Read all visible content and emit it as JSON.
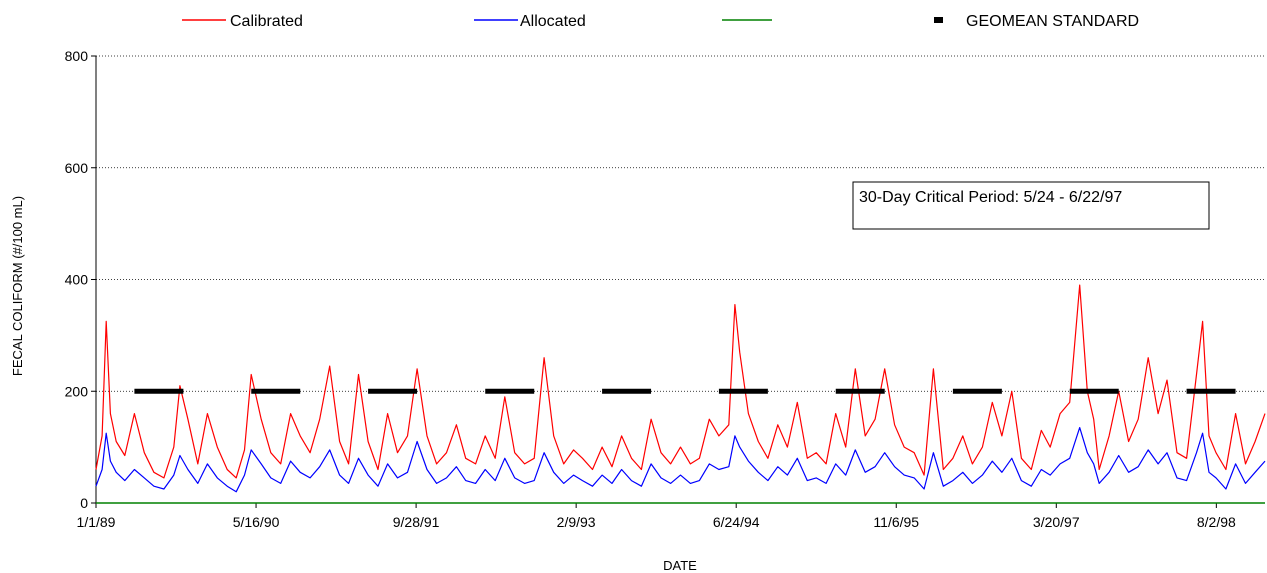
{
  "chart_data": {
    "type": "line",
    "xlabel": "DATE",
    "ylabel": "FECAL COLIFORM (#/100 mL)",
    "ylim": [
      0,
      800
    ],
    "yticks": [
      0,
      200,
      400,
      600,
      800
    ],
    "xlim": [
      "1989-01-01",
      "1999-01-01"
    ],
    "xticks": [
      {
        "date": "1989-01-01",
        "label": "1/1/89"
      },
      {
        "date": "1990-05-16",
        "label": "5/16/90"
      },
      {
        "date": "1991-09-28",
        "label": "9/28/91"
      },
      {
        "date": "1993-02-09",
        "label": "2/9/93"
      },
      {
        "date": "1994-06-24",
        "label": "6/24/94"
      },
      {
        "date": "1995-11-06",
        "label": "11/6/95"
      },
      {
        "date": "1997-03-20",
        "label": "3/20/97"
      },
      {
        "date": "1998-08-02",
        "label": "8/2/98"
      }
    ],
    "grid": "horizontal-dotted",
    "legend_position": "top",
    "annotation": "30-Day Critical Period: 5/24 - 6/22/97",
    "series": [
      {
        "name": "Calibrated",
        "color": "#ff0000",
        "points": [
          [
            "1989-01-01",
            60
          ],
          [
            "1989-01-20",
            120
          ],
          [
            "1989-02-02",
            325
          ],
          [
            "1989-02-15",
            160
          ],
          [
            "1989-03-05",
            110
          ],
          [
            "1989-04-01",
            85
          ],
          [
            "1989-05-01",
            160
          ],
          [
            "1989-06-01",
            90
          ],
          [
            "1989-07-01",
            55
          ],
          [
            "1989-08-01",
            45
          ],
          [
            "1989-09-01",
            100
          ],
          [
            "1989-09-20",
            210
          ],
          [
            "1989-10-15",
            150
          ],
          [
            "1989-11-15",
            70
          ],
          [
            "1989-12-15",
            160
          ],
          [
            "1990-01-15",
            100
          ],
          [
            "1990-02-15",
            60
          ],
          [
            "1990-03-15",
            45
          ],
          [
            "1990-04-10",
            95
          ],
          [
            "1990-05-01",
            230
          ],
          [
            "1990-06-01",
            150
          ],
          [
            "1990-07-01",
            90
          ],
          [
            "1990-08-01",
            70
          ],
          [
            "1990-09-01",
            160
          ],
          [
            "1990-10-01",
            120
          ],
          [
            "1990-11-01",
            90
          ],
          [
            "1990-12-01",
            150
          ],
          [
            "1991-01-01",
            245
          ],
          [
            "1991-02-01",
            110
          ],
          [
            "1991-03-01",
            70
          ],
          [
            "1991-04-01",
            230
          ],
          [
            "1991-05-01",
            110
          ],
          [
            "1991-06-01",
            60
          ],
          [
            "1991-07-01",
            160
          ],
          [
            "1991-08-01",
            90
          ],
          [
            "1991-09-01",
            120
          ],
          [
            "1991-10-01",
            240
          ],
          [
            "1991-11-01",
            120
          ],
          [
            "1991-12-01",
            70
          ],
          [
            "1992-01-01",
            90
          ],
          [
            "1992-02-01",
            140
          ],
          [
            "1992-03-01",
            80
          ],
          [
            "1992-04-01",
            70
          ],
          [
            "1992-05-01",
            120
          ],
          [
            "1992-06-01",
            80
          ],
          [
            "1992-07-01",
            190
          ],
          [
            "1992-08-01",
            90
          ],
          [
            "1992-09-01",
            70
          ],
          [
            "1992-10-01",
            80
          ],
          [
            "1992-11-01",
            260
          ],
          [
            "1992-12-01",
            120
          ],
          [
            "1993-01-01",
            70
          ],
          [
            "1993-02-01",
            95
          ],
          [
            "1993-03-01",
            80
          ],
          [
            "1993-04-01",
            60
          ],
          [
            "1993-05-01",
            100
          ],
          [
            "1993-06-01",
            65
          ],
          [
            "1993-07-01",
            120
          ],
          [
            "1993-08-01",
            80
          ],
          [
            "1993-09-01",
            60
          ],
          [
            "1993-10-01",
            150
          ],
          [
            "1993-11-01",
            90
          ],
          [
            "1993-12-01",
            70
          ],
          [
            "1994-01-01",
            100
          ],
          [
            "1994-02-01",
            70
          ],
          [
            "1994-03-01",
            80
          ],
          [
            "1994-04-01",
            150
          ],
          [
            "1994-05-01",
            120
          ],
          [
            "1994-06-01",
            140
          ],
          [
            "1994-06-20",
            355
          ],
          [
            "1994-07-05",
            270
          ],
          [
            "1994-08-01",
            160
          ],
          [
            "1994-09-01",
            110
          ],
          [
            "1994-10-01",
            80
          ],
          [
            "1994-11-01",
            140
          ],
          [
            "1994-12-01",
            100
          ],
          [
            "1995-01-01",
            180
          ],
          [
            "1995-02-01",
            80
          ],
          [
            "1995-03-01",
            90
          ],
          [
            "1995-04-01",
            70
          ],
          [
            "1995-05-01",
            160
          ],
          [
            "1995-06-01",
            100
          ],
          [
            "1995-07-01",
            240
          ],
          [
            "1995-08-01",
            120
          ],
          [
            "1995-09-01",
            150
          ],
          [
            "1995-10-01",
            240
          ],
          [
            "1995-11-01",
            140
          ],
          [
            "1995-12-01",
            100
          ],
          [
            "1996-01-01",
            90
          ],
          [
            "1996-02-01",
            50
          ],
          [
            "1996-03-01",
            240
          ],
          [
            "1996-04-01",
            60
          ],
          [
            "1996-05-01",
            80
          ],
          [
            "1996-06-01",
            120
          ],
          [
            "1996-07-01",
            70
          ],
          [
            "1996-08-01",
            100
          ],
          [
            "1996-09-01",
            180
          ],
          [
            "1996-10-01",
            120
          ],
          [
            "1996-11-01",
            200
          ],
          [
            "1996-12-01",
            80
          ],
          [
            "1997-01-01",
            60
          ],
          [
            "1997-02-01",
            130
          ],
          [
            "1997-03-01",
            100
          ],
          [
            "1997-04-01",
            160
          ],
          [
            "1997-05-01",
            180
          ],
          [
            "1997-06-01",
            390
          ],
          [
            "1997-06-25",
            200
          ],
          [
            "1997-07-15",
            150
          ],
          [
            "1997-08-01",
            60
          ],
          [
            "1997-09-01",
            120
          ],
          [
            "1997-10-01",
            200
          ],
          [
            "1997-11-01",
            110
          ],
          [
            "1997-12-01",
            150
          ],
          [
            "1998-01-01",
            260
          ],
          [
            "1998-02-01",
            160
          ],
          [
            "1998-03-01",
            220
          ],
          [
            "1998-04-01",
            90
          ],
          [
            "1998-05-01",
            80
          ],
          [
            "1998-06-01",
            230
          ],
          [
            "1998-06-20",
            325
          ],
          [
            "1998-07-10",
            120
          ],
          [
            "1998-08-01",
            90
          ],
          [
            "1998-09-01",
            60
          ],
          [
            "1998-10-01",
            160
          ],
          [
            "1998-11-01",
            70
          ],
          [
            "1998-12-01",
            110
          ],
          [
            "1999-01-01",
            160
          ]
        ]
      },
      {
        "name": "Allocated",
        "color": "#0000ff",
        "points": [
          [
            "1989-01-01",
            30
          ],
          [
            "1989-01-20",
            60
          ],
          [
            "1989-02-02",
            125
          ],
          [
            "1989-02-15",
            75
          ],
          [
            "1989-03-05",
            55
          ],
          [
            "1989-04-01",
            40
          ],
          [
            "1989-05-01",
            60
          ],
          [
            "1989-06-01",
            45
          ],
          [
            "1989-07-01",
            30
          ],
          [
            "1989-08-01",
            25
          ],
          [
            "1989-09-01",
            50
          ],
          [
            "1989-09-20",
            85
          ],
          [
            "1989-10-15",
            60
          ],
          [
            "1989-11-15",
            35
          ],
          [
            "1989-12-15",
            70
          ],
          [
            "1990-01-15",
            45
          ],
          [
            "1990-02-15",
            30
          ],
          [
            "1990-03-15",
            20
          ],
          [
            "1990-04-10",
            50
          ],
          [
            "1990-05-01",
            95
          ],
          [
            "1990-06-01",
            70
          ],
          [
            "1990-07-01",
            45
          ],
          [
            "1990-08-01",
            35
          ],
          [
            "1990-09-01",
            75
          ],
          [
            "1990-10-01",
            55
          ],
          [
            "1990-11-01",
            45
          ],
          [
            "1990-12-01",
            65
          ],
          [
            "1991-01-01",
            95
          ],
          [
            "1991-02-01",
            50
          ],
          [
            "1991-03-01",
            35
          ],
          [
            "1991-04-01",
            80
          ],
          [
            "1991-05-01",
            50
          ],
          [
            "1991-06-01",
            30
          ],
          [
            "1991-07-01",
            70
          ],
          [
            "1991-08-01",
            45
          ],
          [
            "1991-09-01",
            55
          ],
          [
            "1991-10-01",
            110
          ],
          [
            "1991-11-01",
            60
          ],
          [
            "1991-12-01",
            35
          ],
          [
            "1992-01-01",
            45
          ],
          [
            "1992-02-01",
            65
          ],
          [
            "1992-03-01",
            40
          ],
          [
            "1992-04-01",
            35
          ],
          [
            "1992-05-01",
            60
          ],
          [
            "1992-06-01",
            40
          ],
          [
            "1992-07-01",
            80
          ],
          [
            "1992-08-01",
            45
          ],
          [
            "1992-09-01",
            35
          ],
          [
            "1992-10-01",
            40
          ],
          [
            "1992-11-01",
            90
          ],
          [
            "1992-12-01",
            55
          ],
          [
            "1993-01-01",
            35
          ],
          [
            "1993-02-01",
            50
          ],
          [
            "1993-03-01",
            40
          ],
          [
            "1993-04-01",
            30
          ],
          [
            "1993-05-01",
            50
          ],
          [
            "1993-06-01",
            35
          ],
          [
            "1993-07-01",
            60
          ],
          [
            "1993-08-01",
            40
          ],
          [
            "1993-09-01",
            30
          ],
          [
            "1993-10-01",
            70
          ],
          [
            "1993-11-01",
            45
          ],
          [
            "1993-12-01",
            35
          ],
          [
            "1994-01-01",
            50
          ],
          [
            "1994-02-01",
            35
          ],
          [
            "1994-03-01",
            40
          ],
          [
            "1994-04-01",
            70
          ],
          [
            "1994-05-01",
            60
          ],
          [
            "1994-06-01",
            65
          ],
          [
            "1994-06-20",
            120
          ],
          [
            "1994-07-05",
            100
          ],
          [
            "1994-08-01",
            75
          ],
          [
            "1994-09-01",
            55
          ],
          [
            "1994-10-01",
            40
          ],
          [
            "1994-11-01",
            65
          ],
          [
            "1994-12-01",
            50
          ],
          [
            "1995-01-01",
            80
          ],
          [
            "1995-02-01",
            40
          ],
          [
            "1995-03-01",
            45
          ],
          [
            "1995-04-01",
            35
          ],
          [
            "1995-05-01",
            70
          ],
          [
            "1995-06-01",
            50
          ],
          [
            "1995-07-01",
            95
          ],
          [
            "1995-08-01",
            55
          ],
          [
            "1995-09-01",
            65
          ],
          [
            "1995-10-01",
            90
          ],
          [
            "1995-11-01",
            65
          ],
          [
            "1995-12-01",
            50
          ],
          [
            "1996-01-01",
            45
          ],
          [
            "1996-02-01",
            25
          ],
          [
            "1996-03-01",
            90
          ],
          [
            "1996-04-01",
            30
          ],
          [
            "1996-05-01",
            40
          ],
          [
            "1996-06-01",
            55
          ],
          [
            "1996-07-01",
            35
          ],
          [
            "1996-08-01",
            50
          ],
          [
            "1996-09-01",
            75
          ],
          [
            "1996-10-01",
            55
          ],
          [
            "1996-11-01",
            80
          ],
          [
            "1996-12-01",
            40
          ],
          [
            "1997-01-01",
            30
          ],
          [
            "1997-02-01",
            60
          ],
          [
            "1997-03-01",
            50
          ],
          [
            "1997-04-01",
            70
          ],
          [
            "1997-05-01",
            80
          ],
          [
            "1997-06-01",
            135
          ],
          [
            "1997-06-25",
            90
          ],
          [
            "1997-07-15",
            70
          ],
          [
            "1997-08-01",
            35
          ],
          [
            "1997-09-01",
            55
          ],
          [
            "1997-10-01",
            85
          ],
          [
            "1997-11-01",
            55
          ],
          [
            "1997-12-01",
            65
          ],
          [
            "1998-01-01",
            95
          ],
          [
            "1998-02-01",
            70
          ],
          [
            "1998-03-01",
            90
          ],
          [
            "1998-04-01",
            45
          ],
          [
            "1998-05-01",
            40
          ],
          [
            "1998-06-01",
            90
          ],
          [
            "1998-06-20",
            125
          ],
          [
            "1998-07-10",
            55
          ],
          [
            "1998-08-01",
            45
          ],
          [
            "1998-09-01",
            25
          ],
          [
            "1998-10-01",
            70
          ],
          [
            "1998-11-01",
            35
          ],
          [
            "1998-12-01",
            55
          ],
          [
            "1999-01-01",
            75
          ]
        ]
      },
      {
        "name": "",
        "color": "#008000",
        "points": [
          [
            "1989-01-01",
            0
          ],
          [
            "1999-01-01",
            0
          ]
        ]
      }
    ],
    "geomean": {
      "name": "GEOMEAN STANDARD",
      "color": "#000000",
      "value": 200,
      "segments": [
        [
          "1989-05-01",
          "1989-10-01"
        ],
        [
          "1990-05-01",
          "1990-10-01"
        ],
        [
          "1991-05-01",
          "1991-10-01"
        ],
        [
          "1992-05-01",
          "1992-10-01"
        ],
        [
          "1993-05-01",
          "1993-10-01"
        ],
        [
          "1994-05-01",
          "1994-10-01"
        ],
        [
          "1995-05-01",
          "1995-10-01"
        ],
        [
          "1996-05-01",
          "1996-10-01"
        ],
        [
          "1997-05-01",
          "1997-10-01"
        ],
        [
          "1998-05-01",
          "1998-10-01"
        ]
      ]
    }
  }
}
